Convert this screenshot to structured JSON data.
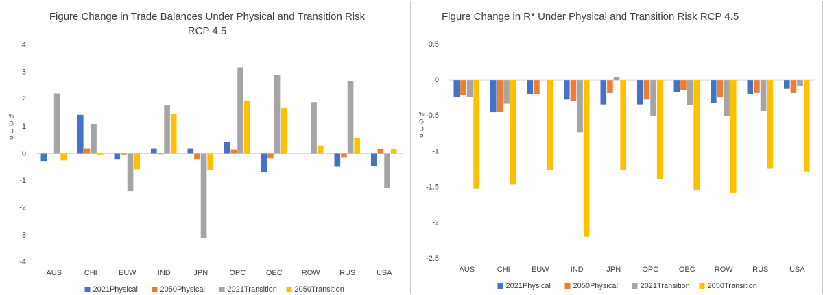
{
  "chart_data": [
    {
      "type": "bar",
      "title": "Figure Change in Trade Balances Under Physical and Transition Risk RCP 4.5",
      "y_label": "%GDP",
      "categories": [
        "AUS",
        "CHI",
        "EUW",
        "IND",
        "JPN",
        "OPC",
        "OEC",
        "ROW",
        "RUS",
        "USA"
      ],
      "series": [
        {
          "name": "2021Physical",
          "color": "#4472c4",
          "values": [
            -0.27,
            1.43,
            -0.22,
            0.2,
            0.2,
            0.42,
            -0.68,
            0,
            -0.48,
            -0.45
          ]
        },
        {
          "name": "2050Physical",
          "color": "#ed7d31",
          "values": [
            0,
            0.2,
            -0.03,
            -0.02,
            -0.22,
            0.15,
            -0.17,
            0,
            -0.15,
            0.18
          ]
        },
        {
          "name": "2021Transition",
          "color": "#a5a5a5",
          "values": [
            2.22,
            1.1,
            -1.38,
            1.78,
            -3.1,
            3.18,
            2.9,
            1.9,
            2.68,
            -1.27
          ]
        },
        {
          "name": "2050Transition",
          "color": "#ffc000",
          "values": [
            -0.25,
            -0.05,
            -0.58,
            1.47,
            -0.62,
            1.95,
            1.68,
            0.3,
            0.57,
            0.17
          ]
        }
      ],
      "ylim": [
        -4,
        4
      ],
      "yticks": [
        -4,
        -3,
        -2,
        -1,
        0,
        1,
        2,
        3,
        4
      ],
      "grid": false,
      "legend": "bottom"
    },
    {
      "type": "bar",
      "title": "Figure Change in R* Under Physical and Transition Risk RCP 4.5",
      "y_label": "%GDP",
      "categories": [
        "AUS",
        "CHI",
        "EUW",
        "IND",
        "JPN",
        "OPC",
        "OEC",
        "ROW",
        "RUS",
        "USA"
      ],
      "series": [
        {
          "name": "2021Physical",
          "color": "#4472c4",
          "values": [
            -0.23,
            -0.45,
            -0.2,
            -0.27,
            -0.34,
            -0.34,
            -0.17,
            -0.32,
            -0.2,
            -0.12
          ]
        },
        {
          "name": "2050Physical",
          "color": "#ed7d31",
          "values": [
            -0.21,
            -0.44,
            -0.19,
            -0.29,
            -0.18,
            -0.27,
            -0.14,
            -0.24,
            -0.18,
            -0.18
          ]
        },
        {
          "name": "2021Transition",
          "color": "#a5a5a5",
          "values": [
            -0.23,
            -0.33,
            0,
            -0.73,
            0.04,
            -0.5,
            -0.35,
            -0.5,
            -0.43,
            -0.08
          ]
        },
        {
          "name": "2050Transition",
          "color": "#ffc000",
          "values": [
            -1.52,
            -1.46,
            -1.26,
            -2.19,
            -1.26,
            -1.38,
            -1.54,
            -1.58,
            -1.24,
            -1.28
          ]
        }
      ],
      "ylim": [
        -2.5,
        0.5
      ],
      "yticks": [
        -2.5,
        -2,
        -1.5,
        -1,
        -0.5,
        0,
        0.5
      ],
      "grid": false,
      "legend": "bottom"
    }
  ]
}
